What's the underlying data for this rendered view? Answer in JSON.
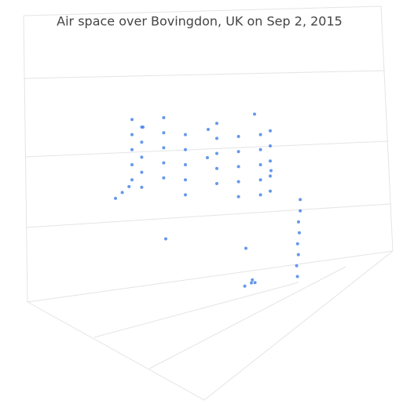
{
  "chart_data": {
    "type": "scatter3d",
    "title": "Air space over Bovingdon, UK on Sep 2, 2015",
    "series": [
      {
        "color": "#4a86e8",
        "x": [
          9,
          7.8,
          5,
          2.2,
          1,
          2.2,
          5,
          7.8,
          9,
          7.8,
          5,
          2.2,
          1,
          2.2,
          5,
          7.8,
          9,
          7.8,
          5,
          2.2,
          1,
          2.2,
          5,
          7.8,
          9,
          7.8,
          5,
          2.2,
          1,
          2.2,
          5,
          7.8,
          9,
          7.8,
          5,
          2.2,
          1,
          2.2,
          5,
          7.8,
          9.6,
          9.6,
          9.5,
          9.5,
          9.4,
          9.4,
          9.3,
          9.3,
          6,
          6.3,
          5.8,
          6.1,
          0.5,
          0.8,
          1.1,
          3,
          7,
          8.5,
          4,
          2.5,
          6.5,
          9.5
        ],
        "y": [
          5,
          6.4,
          7,
          6.4,
          5,
          3.6,
          3,
          3.6,
          5,
          6.4,
          7,
          6.4,
          5,
          3.6,
          3,
          3.6,
          5,
          6.4,
          7,
          6.4,
          5,
          3.6,
          3,
          3.6,
          5,
          6.4,
          7,
          6.4,
          5,
          3.6,
          3,
          3.6,
          5,
          6.4,
          7,
          6.4,
          5,
          3.6,
          3,
          3.6,
          2.5,
          2.5,
          2.5,
          2.4,
          2.4,
          2.3,
          2.3,
          2.2,
          0.8,
          1,
          1.2,
          0.9,
          6,
          5.8,
          5.6,
          8,
          8.5,
          7,
          2,
          4,
          1.5,
          6
        ],
        "z": [
          9.8,
          9.7,
          9.6,
          9.5,
          9.4,
          9.3,
          9.2,
          9.1,
          9,
          8.9,
          8.8,
          8.7,
          8.6,
          8.5,
          8.4,
          8.3,
          8.2,
          8.1,
          8,
          7.9,
          7.8,
          7.7,
          7.6,
          7.5,
          7.4,
          7.3,
          7.2,
          7.1,
          7,
          6.9,
          6.8,
          6.7,
          6.6,
          6.5,
          6.4,
          6.3,
          6.2,
          6.1,
          6,
          5.9,
          5.6,
          5,
          4.4,
          3.8,
          3.2,
          2.6,
          2,
          1.4,
          0.3,
          0.4,
          0.2,
          0.5,
          5.4,
          5.7,
          6,
          10,
          10.5,
          4,
          7,
          3,
          9.5,
          8
        ]
      }
    ]
  }
}
